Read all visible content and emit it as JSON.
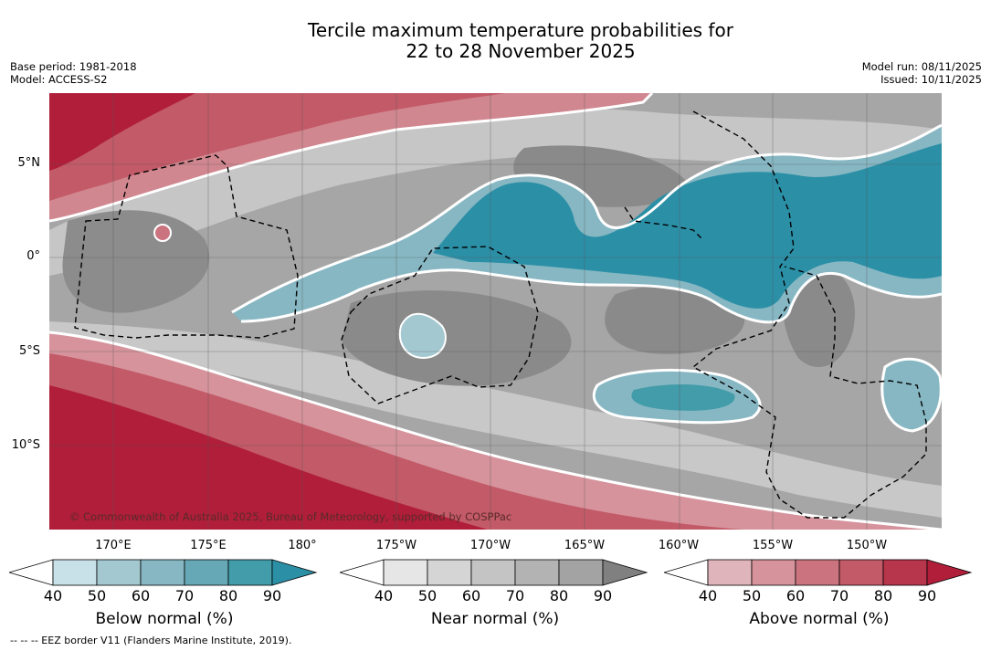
{
  "title": {
    "line1": "Tercile maximum temperature probabilities for",
    "line2": "22 to 28 November 2025"
  },
  "meta_left": {
    "base_period": "Base period: 1981-2018",
    "model": "Model: ACCESS-S2"
  },
  "meta_right": {
    "model_run": "Model run: 08/11/2025",
    "issued": "Issued: 10/11/2025"
  },
  "map": {
    "lat_labels": [
      "5°N",
      "0°",
      "5°S",
      "10°S"
    ],
    "lon_labels": [
      "170°E",
      "175°E",
      "180°",
      "175°W",
      "170°W",
      "165°W",
      "160°W",
      "155°W",
      "150°W"
    ],
    "copyright": "© Commonwealth of Australia 2025, Bureau of Meteorology, supported by COSPPac",
    "colors": {
      "above_dark": "#b01e3a",
      "near_grey": "#a6a6a6",
      "below_teal": "#2b8fa6",
      "eez_border": "#000000"
    }
  },
  "colorbars": {
    "below": {
      "title": "Below normal (%)",
      "ticks": [
        "40",
        "50",
        "60",
        "70",
        "80",
        "90"
      ],
      "colors": [
        "#ffffff",
        "#c8e0e7",
        "#a4c8d0",
        "#86b7c3",
        "#66a8b6",
        "#439ca9",
        "#2b8fa6"
      ]
    },
    "near": {
      "title": "Near normal (%)",
      "ticks": [
        "40",
        "50",
        "60",
        "70",
        "80",
        "90"
      ],
      "colors": [
        "#ffffff",
        "#e6e6e6",
        "#d5d5d5",
        "#c4c4c4",
        "#b3b3b3",
        "#a3a3a3",
        "#808080"
      ]
    },
    "above": {
      "title": "Above normal (%)",
      "ticks": [
        "40",
        "50",
        "60",
        "70",
        "80",
        "90"
      ],
      "colors": [
        "#ffffff",
        "#dfb5bb",
        "#d6939c",
        "#cb7480",
        "#c35a68",
        "#b8364c",
        "#b01e3a"
      ]
    }
  },
  "footnote": "--  --  -- EEZ border V11 (Flanders Marine Institute, 2019)."
}
